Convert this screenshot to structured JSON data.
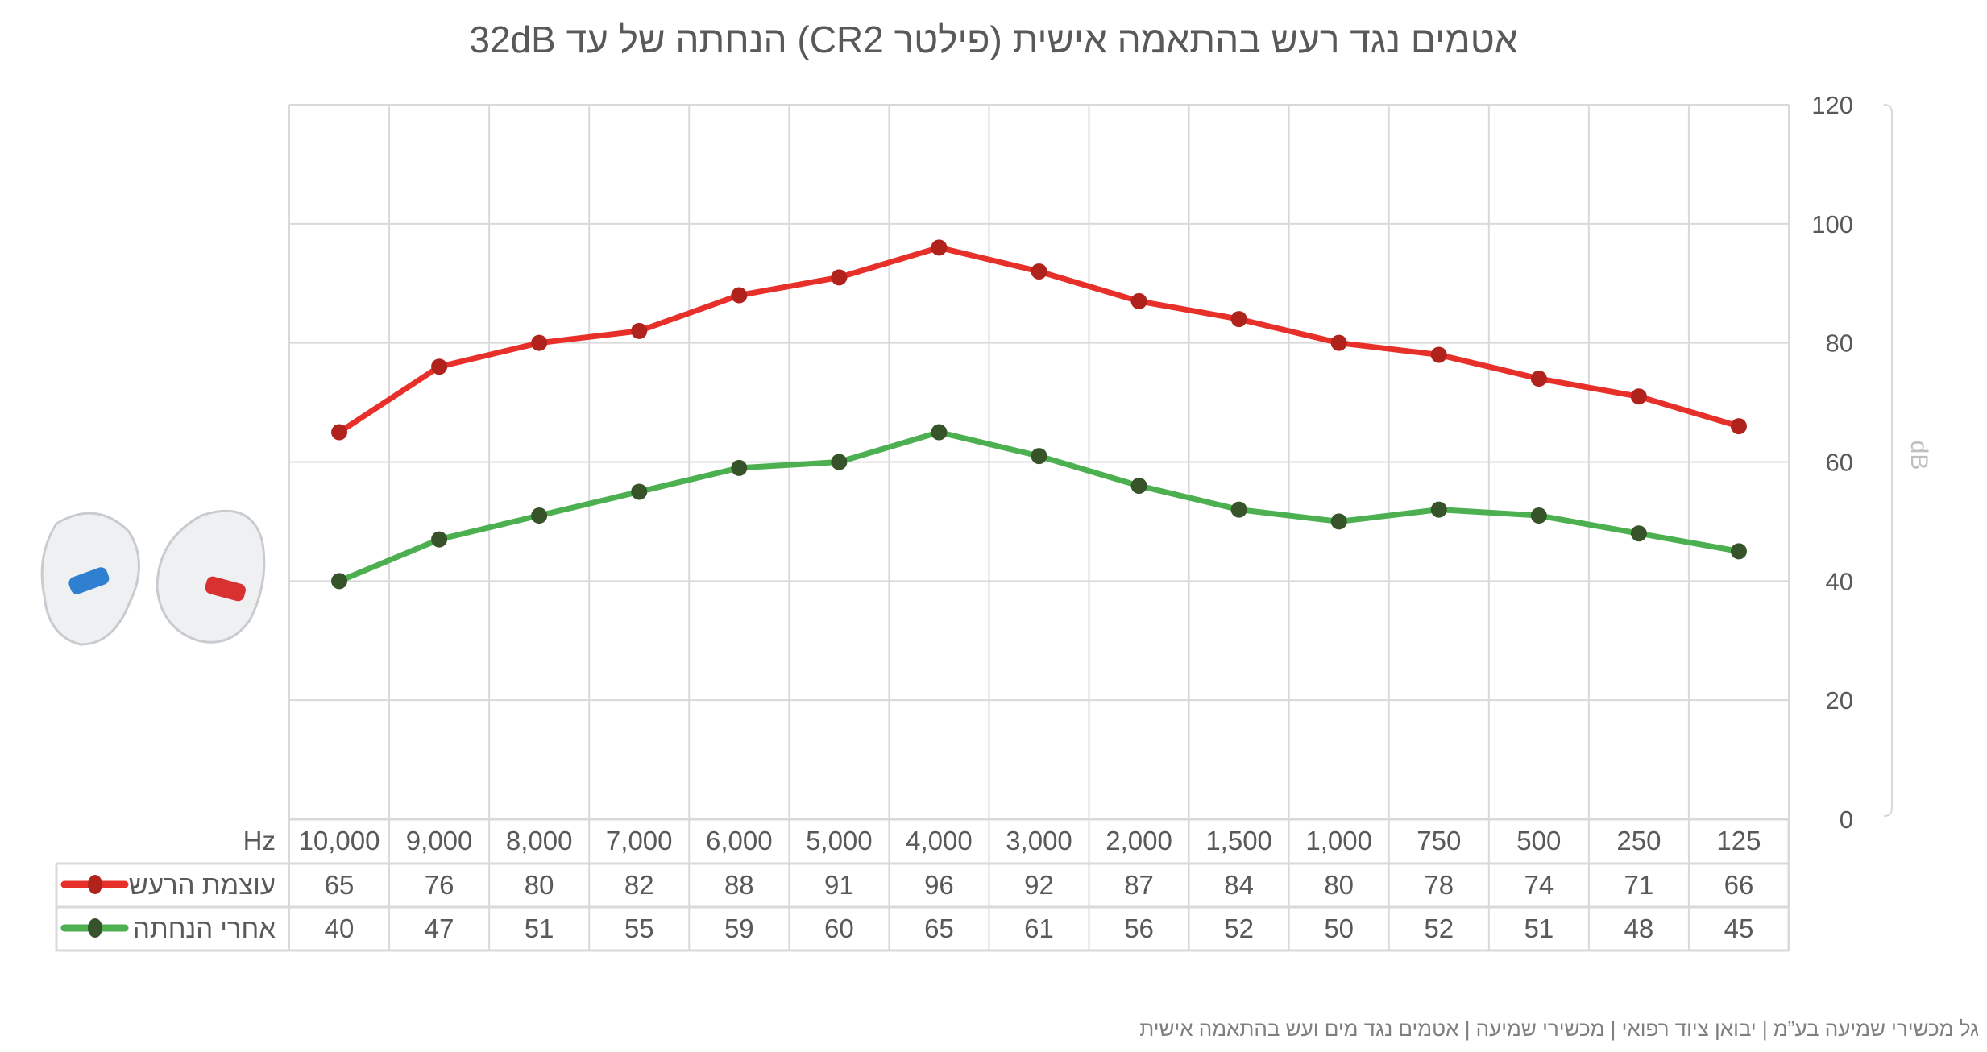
{
  "chart_data": {
    "type": "line",
    "title": "אטמים נגד רעש בהתאמה אישית (פילטר CR2) הנחתה של עד 32dB",
    "xlabel": "Hz",
    "ylabel": "dB",
    "ylim": [
      0,
      120
    ],
    "yticks": [
      0,
      20,
      40,
      60,
      80,
      100,
      120
    ],
    "y_axis_side": "right",
    "grid": true,
    "legend": "data-table",
    "categories": [
      "10,000",
      "9,000",
      "8,000",
      "7,000",
      "6,000",
      "5,000",
      "4,000",
      "3,000",
      "2,000",
      "1,500",
      "1,000",
      "750",
      "500",
      "250",
      "125"
    ],
    "series": [
      {
        "name": "עוצמת הרעש",
        "color": "#e8302a",
        "marker_color": "#b0231d",
        "values": [
          65,
          76,
          80,
          82,
          88,
          91,
          96,
          92,
          87,
          84,
          80,
          78,
          74,
          71,
          66
        ]
      },
      {
        "name": "אחרי הנחתה",
        "color": "#4caf50",
        "marker_color": "#37532a",
        "values": [
          40,
          47,
          51,
          55,
          59,
          60,
          65,
          61,
          56,
          52,
          50,
          52,
          51,
          48,
          45
        ]
      }
    ]
  },
  "footer": "גל מכשירי שמיעה בע”מ | יבואן ציוד רפואי | מכשירי שמיעה | אטמים נגד מים ועש בהתאמה אישית",
  "image": {
    "icon": "custom-earplugs-image"
  }
}
